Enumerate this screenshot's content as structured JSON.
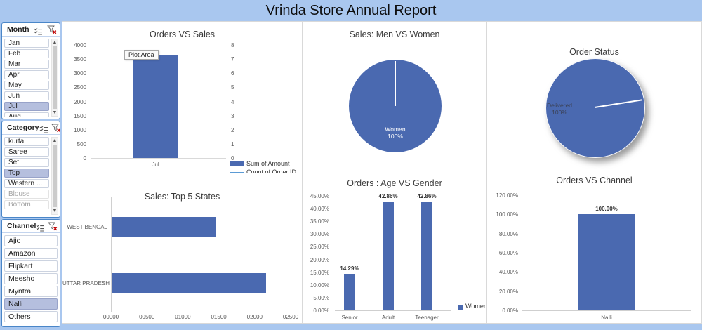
{
  "app": {
    "title": "Vrinda Store Annual Report"
  },
  "colors": {
    "accent_blue": "#4a69b0",
    "line_blue": "#5b9bd5",
    "background": "#a9c7ef",
    "selected_item": "#b5bfde"
  },
  "slicers": [
    {
      "name": "Month",
      "has_scrollbar": true,
      "items": [
        {
          "label": "Jan"
        },
        {
          "label": "Feb"
        },
        {
          "label": "Mar"
        },
        {
          "label": "Apr"
        },
        {
          "label": "May"
        },
        {
          "label": "Jun"
        },
        {
          "label": "Jul",
          "selected": true
        },
        {
          "label": "Aug",
          "clipped": true
        }
      ]
    },
    {
      "name": "Category",
      "has_scrollbar": true,
      "items": [
        {
          "label": "kurta"
        },
        {
          "label": "Saree"
        },
        {
          "label": "Set"
        },
        {
          "label": "Top",
          "selected": true
        },
        {
          "label": "Western ..."
        },
        {
          "label": "Blouse",
          "disabled": true
        },
        {
          "label": "Bottom",
          "disabled": true
        }
      ]
    },
    {
      "name": "Channel",
      "has_scrollbar": false,
      "items": [
        {
          "label": "Ajio"
        },
        {
          "label": "Amazon"
        },
        {
          "label": "Flipkart"
        },
        {
          "label": "Meesho"
        },
        {
          "label": "Myntra"
        },
        {
          "label": "Nalli",
          "selected": true
        },
        {
          "label": "Others"
        }
      ]
    }
  ],
  "chart_data": [
    {
      "type": "bar",
      "title": "Orders VS Sales",
      "categories": [
        "Jul"
      ],
      "series": [
        {
          "name": "Sum of Amount",
          "chart": "column",
          "axis": "left",
          "values": [
            3630
          ]
        },
        {
          "name": "Count of Order ID",
          "chart": "line",
          "axis": "right",
          "values": [
            null
          ]
        }
      ],
      "left_axis": {
        "min": 0,
        "max": 4000,
        "step": 500,
        "ticks": [
          "0",
          "500",
          "1000",
          "1500",
          "2000",
          "2500",
          "3000",
          "3500",
          "4000"
        ]
      },
      "right_axis": {
        "min": 0,
        "max": 8,
        "step": 1,
        "ticks": [
          "0",
          "1",
          "2",
          "3",
          "4",
          "5",
          "6",
          "7",
          "8"
        ]
      },
      "annotation": "Plot Area",
      "legend_position": "bottom-right"
    },
    {
      "type": "pie",
      "title": "Sales: Men VS Women",
      "slices": [
        {
          "label": "Women",
          "value": 100,
          "pct_label": "100%"
        }
      ]
    },
    {
      "type": "pie",
      "title": "Order Status",
      "shadow": true,
      "slices": [
        {
          "label": "Delivered",
          "value": 100,
          "pct_label": "100%"
        }
      ]
    },
    {
      "type": "bar",
      "orientation": "horizontal",
      "title": "Sales: Top 5 States",
      "categories": [
        "WEST BENGAL",
        "UTTAR PRADESH"
      ],
      "values": [
        1450,
        2150
      ],
      "x_axis": {
        "min": 0,
        "max": 2500,
        "step": 500,
        "ticks": [
          "00000",
          "00500",
          "01000",
          "01500",
          "02000",
          "02500"
        ]
      }
    },
    {
      "type": "bar",
      "title": "Orders : Age VS Gender",
      "categories": [
        "Senior",
        "Adult",
        "Teenager"
      ],
      "values": [
        14.29,
        42.86,
        42.86
      ],
      "data_labels": [
        "14.29%",
        "42.86%",
        "42.86%"
      ],
      "y_axis": {
        "min": 0,
        "max": 45,
        "step": 5,
        "ticks": [
          "0.00%",
          "5.00%",
          "10.00%",
          "15.00%",
          "20.00%",
          "25.00%",
          "30.00%",
          "35.00%",
          "40.00%",
          "45.00%"
        ]
      },
      "legend": [
        "Women"
      ]
    },
    {
      "type": "bar",
      "title": "Orders VS Channel",
      "categories": [
        "Nalli"
      ],
      "values": [
        100
      ],
      "data_labels": [
        "100.00%"
      ],
      "y_axis": {
        "min": 0,
        "max": 120,
        "step": 20,
        "ticks": [
          "0.00%",
          "20.00%",
          "40.00%",
          "60.00%",
          "80.00%",
          "100.00%",
          "120.00%"
        ]
      }
    }
  ]
}
